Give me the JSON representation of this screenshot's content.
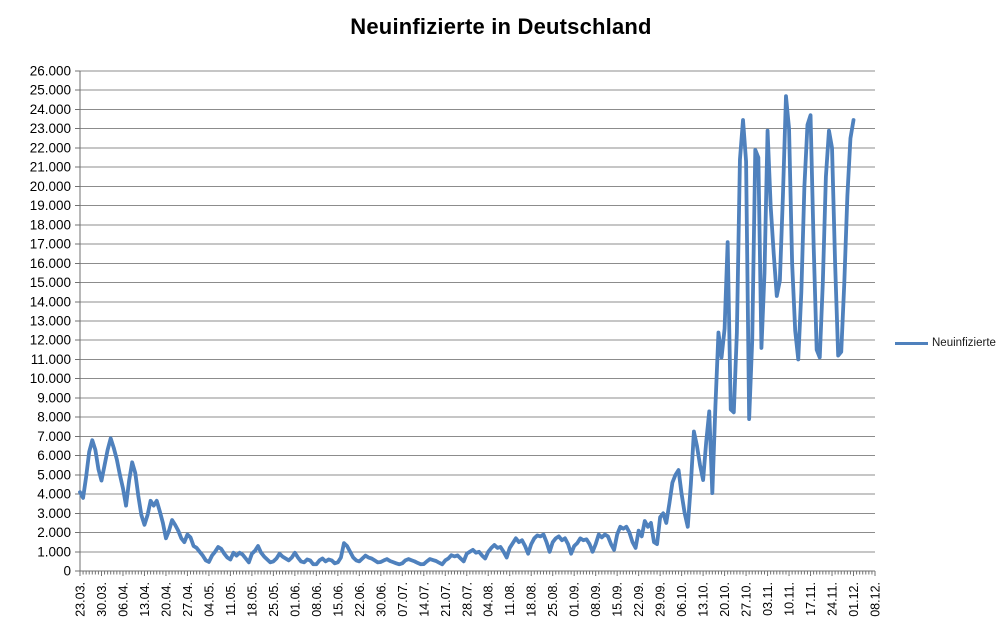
{
  "chart": {
    "title": "Neuinfizierte in Deutschland",
    "legend_label": "Neuinfizierte",
    "line_color": "#4f81bd",
    "grid_color": "#8c8c8c",
    "axis_color": "#707070",
    "text_color": "#000000",
    "background": "#ffffff"
  },
  "chart_data": {
    "type": "line",
    "title": "Neuinfizierte in Deutschland",
    "series_name": "Neuinfizierte",
    "legend_position": "right",
    "grid": true,
    "ylim": [
      0,
      26000
    ],
    "y_tick_step": 1000,
    "y_ticks": [
      "0",
      "1.000",
      "2.000",
      "3.000",
      "4.000",
      "5.000",
      "6.000",
      "7.000",
      "8.000",
      "9.000",
      "10.000",
      "11.000",
      "12.000",
      "13.000",
      "14.000",
      "15.000",
      "16.000",
      "17.000",
      "18.000",
      "19.000",
      "20.000",
      "21.000",
      "22.000",
      "23.000",
      "24.000",
      "25.000",
      "26.000"
    ],
    "x_tick_labels": [
      "23.03.",
      "30.03.",
      "06.04.",
      "13.04.",
      "20.04.",
      "27.04.",
      "04.05.",
      "11.05.",
      "18.05.",
      "25.05.",
      "01.06.",
      "08.06.",
      "15.06.",
      "22.06.",
      "30.06.",
      "07.07.",
      "14.07.",
      "21.07.",
      "28.07.",
      "04.08.",
      "11.08.",
      "18.08.",
      "25.08.",
      "01.09.",
      "08.09.",
      "15.09.",
      "22.09.",
      "29.09.",
      "06.10.",
      "13.10.",
      "20.10.",
      "27.10.",
      "03.11.",
      "10.11.",
      "17.11.",
      "24.11.",
      "01.12.",
      "08.12."
    ],
    "x_tick_step": 7,
    "x_categories_total": 260,
    "start_date": "23.03.",
    "values": [
      4100,
      3800,
      4900,
      6200,
      6800,
      6300,
      5300,
      4700,
      5500,
      6300,
      6900,
      6400,
      5800,
      5000,
      4300,
      3400,
      4700,
      5650,
      5100,
      3900,
      2900,
      2400,
      2900,
      3650,
      3400,
      3650,
      3100,
      2500,
      1700,
      2100,
      2650,
      2400,
      2100,
      1700,
      1500,
      1900,
      1750,
      1300,
      1200,
      1000,
      800,
      550,
      470,
      800,
      1000,
      1250,
      1150,
      900,
      700,
      600,
      950,
      800,
      950,
      850,
      650,
      450,
      900,
      1050,
      1300,
      950,
      750,
      600,
      450,
      500,
      650,
      900,
      750,
      650,
      550,
      700,
      950,
      700,
      500,
      450,
      600,
      550,
      350,
      350,
      550,
      650,
      500,
      600,
      550,
      400,
      450,
      700,
      1450,
      1300,
      1000,
      700,
      550,
      500,
      650,
      800,
      700,
      650,
      550,
      450,
      470,
      550,
      620,
      520,
      460,
      400,
      350,
      400,
      550,
      620,
      560,
      500,
      420,
      350,
      360,
      500,
      620,
      570,
      520,
      430,
      350,
      550,
      650,
      820,
      760,
      810,
      650,
      500,
      900,
      1000,
      1100,
      950,
      1000,
      800,
      650,
      1000,
      1200,
      1350,
      1200,
      1250,
      1000,
      700,
      1200,
      1450,
      1700,
      1500,
      1600,
      1300,
      900,
      1400,
      1700,
      1850,
      1800,
      1900,
      1500,
      1000,
      1500,
      1700,
      1800,
      1600,
      1700,
      1400,
      900,
      1300,
      1450,
      1700,
      1600,
      1650,
      1400,
      1000,
      1400,
      1900,
      1750,
      1900,
      1800,
      1400,
      1100,
      1900,
      2300,
      2200,
      2300,
      2000,
      1500,
      1200,
      2100,
      1800,
      2600,
      2300,
      2500,
      1500,
      1400,
      2800,
      3000,
      2500,
      3500,
      4600,
      5000,
      5250,
      4000,
      3000,
      2300,
      4500,
      7250,
      6500,
      5500,
      4730,
      6700,
      8300,
      4050,
      8550,
      12400,
      11100,
      12600,
      17100,
      8400,
      8250,
      12400,
      21400,
      23450,
      21300,
      7900,
      12000,
      21900,
      21500,
      11600,
      15500,
      22900,
      19000,
      16500,
      14300,
      15100,
      19500,
      24690,
      23000,
      16000,
      12500,
      11000,
      14500,
      20000,
      23200,
      23700,
      17000,
      11500,
      11100,
      15000,
      20500,
      22900,
      22000,
      16000,
      11200,
      11400,
      15000,
      19500,
      22500,
      23450
    ]
  }
}
